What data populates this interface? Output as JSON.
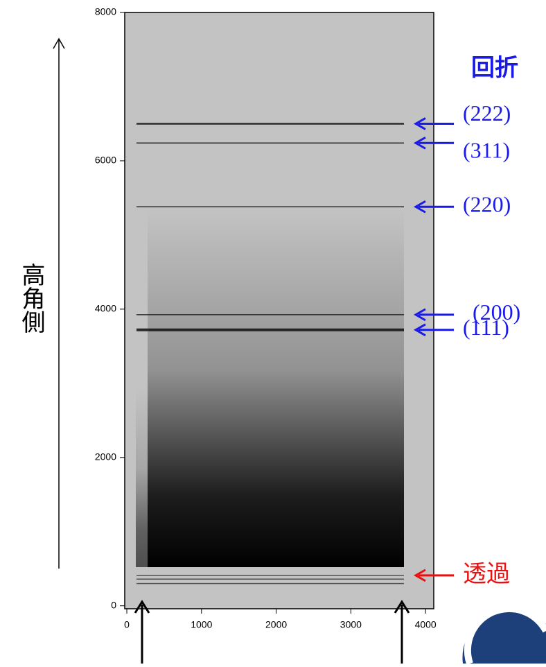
{
  "chart_data": {
    "type": "image",
    "y_label": "高角側",
    "xlim": [
      -28,
      4110
    ],
    "ylim": [
      -40,
      8000
    ],
    "xticks": [
      0,
      1000,
      2000,
      3000,
      4000
    ],
    "yticks": [
      0,
      2000,
      4000,
      6000,
      8000
    ],
    "diffraction": {
      "label": "回折",
      "color": "#1b1be8",
      "peaks": [
        {
          "label": "(222)",
          "value": 6500
        },
        {
          "label": "(311)",
          "value": 6240
        },
        {
          "label": "(220)",
          "value": 5380
        },
        {
          "label": "(200)",
          "value": 3925
        },
        {
          "label": "(111)",
          "value": 3720
        }
      ]
    },
    "transmission": {
      "label": "透過",
      "color": "#e81010",
      "values": [
        410,
        360,
        300
      ]
    }
  }
}
